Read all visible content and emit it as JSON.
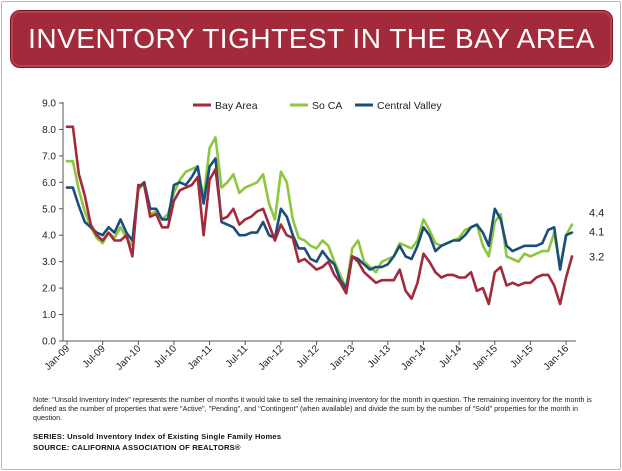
{
  "title": "INVENTORY TIGHTEST IN THE BAY AREA",
  "note": "Note: \"Unsold Inventory Index\" represents the number of months it would take to sell the remaining inventory for the month in question. The remaining inventory for the month is defined as the number of properties that were \"Active\", \"Pending\", and \"Contingent\" (when available) and divide the sum by the number of \"Sold\" properties for the month in question.",
  "series_line": "SERIES: Unsold Inventory Index of Existing Single Family Homes",
  "source_line": "SOURCE:  CALIFORNIA ASSOCIATION OF REALTORS®",
  "chart_data": {
    "type": "line",
    "x_labels": [
      "Jan-09",
      "Jul-09",
      "Jan-10",
      "Jul-10",
      "Jan-11",
      "Jul-11",
      "Jan-12",
      "Jul-12",
      "Jan-13",
      "Jul-13",
      "Jan-14",
      "Jul-14",
      "Jan-15",
      "Jul-15",
      "Jan-16"
    ],
    "y_ticks": [
      "0.0",
      "1.0",
      "2.0",
      "3.0",
      "4.0",
      "5.0",
      "6.0",
      "7.0",
      "8.0",
      "9.0"
    ],
    "ylim": [
      0,
      9
    ],
    "grid": false,
    "legend_position": "top",
    "end_labels": [
      "4.4",
      "4.1",
      "3.2"
    ],
    "series": [
      {
        "name": "Bay Area",
        "color": "#a32a3a",
        "values": [
          8.1,
          8.1,
          6.3,
          5.5,
          4.4,
          4.0,
          3.8,
          4.1,
          3.8,
          3.8,
          4.0,
          3.2,
          5.9,
          5.9,
          4.7,
          4.8,
          4.3,
          4.3,
          5.3,
          5.7,
          5.8,
          5.9,
          6.2,
          4.0,
          6.1,
          6.5,
          4.6,
          4.7,
          5.0,
          4.4,
          4.6,
          4.7,
          4.9,
          5.0,
          4.4,
          3.8,
          4.4,
          4.0,
          3.9,
          3.0,
          3.1,
          2.9,
          2.7,
          2.8,
          3.0,
          2.5,
          2.2,
          1.8,
          3.2,
          3.0,
          2.6,
          2.4,
          2.2,
          2.3,
          2.3,
          2.3,
          2.7,
          1.9,
          1.6,
          2.2,
          3.3,
          3.0,
          2.6,
          2.4,
          2.5,
          2.5,
          2.4,
          2.4,
          2.6,
          1.9,
          2.0,
          1.4,
          2.6,
          2.8,
          2.1,
          2.2,
          2.1,
          2.2,
          2.2,
          2.4,
          2.5,
          2.5,
          2.1,
          1.4,
          2.4,
          3.2
        ]
      },
      {
        "name": "So CA",
        "color": "#8dc63f",
        "values": [
          6.8,
          6.8,
          5.7,
          4.9,
          4.3,
          3.9,
          3.7,
          4.1,
          3.9,
          4.3,
          3.9,
          3.6,
          5.7,
          6.0,
          4.8,
          4.9,
          4.6,
          4.8,
          5.6,
          6.1,
          6.4,
          6.5,
          6.6,
          5.4,
          7.3,
          7.7,
          5.8,
          6.0,
          6.3,
          5.6,
          5.8,
          5.9,
          6.0,
          6.3,
          5.2,
          4.6,
          6.4,
          6.0,
          4.6,
          3.9,
          3.8,
          3.6,
          3.5,
          3.8,
          3.6,
          3.0,
          2.5,
          2.0,
          3.5,
          3.8,
          3.0,
          2.8,
          2.6,
          3.0,
          3.1,
          3.2,
          3.7,
          3.6,
          3.5,
          3.8,
          4.6,
          4.2,
          3.7,
          3.6,
          3.7,
          3.8,
          3.9,
          4.2,
          4.3,
          4.4,
          3.6,
          3.2,
          4.5,
          4.8,
          3.2,
          3.1,
          3.0,
          3.3,
          3.2,
          3.3,
          3.4,
          3.4,
          4.1,
          2.8,
          4.0,
          4.4
        ]
      },
      {
        "name": "Central Valley",
        "color": "#1b4e78",
        "values": [
          5.8,
          5.8,
          5.1,
          4.5,
          4.3,
          4.1,
          4.0,
          4.3,
          4.1,
          4.6,
          4.1,
          3.8,
          5.8,
          6.0,
          5.0,
          5.0,
          4.6,
          4.6,
          5.9,
          6.0,
          5.9,
          6.2,
          6.6,
          5.2,
          6.6,
          6.9,
          4.5,
          4.4,
          4.3,
          4.0,
          4.0,
          4.1,
          4.1,
          4.5,
          4.0,
          3.9,
          5.0,
          4.7,
          4.0,
          3.5,
          3.5,
          3.1,
          3.0,
          3.4,
          3.1,
          2.9,
          2.3,
          2.0,
          3.2,
          3.1,
          2.9,
          2.7,
          2.8,
          2.8,
          2.9,
          3.2,
          3.6,
          3.2,
          3.1,
          3.6,
          4.3,
          4.0,
          3.4,
          3.6,
          3.7,
          3.8,
          3.8,
          4.0,
          4.3,
          4.4,
          4.1,
          3.6,
          5.0,
          4.6,
          3.6,
          3.4,
          3.5,
          3.6,
          3.6,
          3.6,
          3.7,
          4.2,
          4.3,
          2.7,
          4.0,
          4.1
        ]
      }
    ]
  }
}
